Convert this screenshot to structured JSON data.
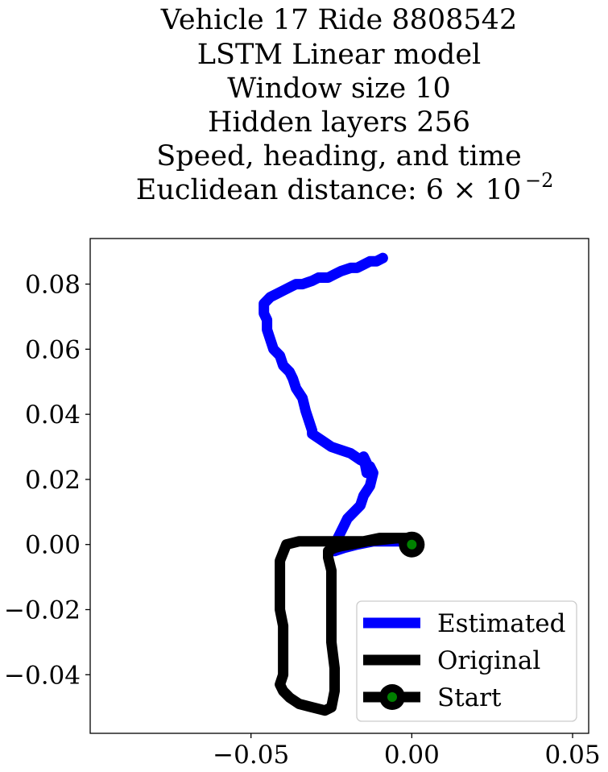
{
  "chart_data": {
    "type": "line",
    "title_lines": [
      "Vehicle 17 Ride 8808542",
      "LSTM Linear model",
      "Window size 10",
      "Hidden layers 256",
      "Speed, heading, and time",
      "Euclidean distance: 6 × 10",
      "−2"
    ],
    "xlabel": "",
    "ylabel": "",
    "xlim": [
      -0.1,
      0.055
    ],
    "ylim": [
      -0.058,
      0.094
    ],
    "x_ticks": [
      -0.05,
      0.0,
      0.05
    ],
    "x_tick_labels": [
      "−0.05",
      "0.00",
      "0.05"
    ],
    "y_ticks": [
      0.08,
      0.06,
      0.04,
      0.02,
      0.0,
      -0.02,
      -0.04
    ],
    "y_tick_labels": [
      "0.08",
      "0.06",
      "0.04",
      "0.02",
      "0.00",
      "−0.02",
      "−0.04"
    ],
    "grid": false,
    "legend_position": "lower-right",
    "series": [
      {
        "name": "Estimated",
        "color": "#0000ff",
        "x": [
          0.0,
          -0.003,
          -0.007,
          -0.012,
          -0.017,
          -0.021,
          -0.024,
          -0.023,
          -0.021,
          -0.02,
          -0.018,
          -0.016,
          -0.015,
          -0.013,
          -0.012,
          -0.013,
          -0.014,
          -0.015,
          -0.014,
          -0.016,
          -0.019,
          -0.022,
          -0.025,
          -0.028,
          -0.031,
          -0.031,
          -0.032,
          -0.033,
          -0.034,
          -0.036,
          -0.037,
          -0.038,
          -0.04,
          -0.041,
          -0.043,
          -0.044,
          -0.045,
          -0.045,
          -0.046,
          -0.046,
          -0.046,
          -0.045,
          -0.044,
          -0.042,
          -0.04,
          -0.038,
          -0.036,
          -0.034,
          -0.031,
          -0.029,
          -0.026,
          -0.024,
          -0.022,
          -0.019,
          -0.017,
          -0.015,
          -0.013,
          -0.011,
          -0.009
        ],
        "y": [
          0.0,
          0.001,
          0.001,
          0.001,
          0.0,
          -0.001,
          -0.002,
          0.002,
          0.006,
          0.008,
          0.01,
          0.012,
          0.015,
          0.018,
          0.022,
          0.024,
          0.022,
          0.027,
          0.025,
          0.026,
          0.028,
          0.029,
          0.03,
          0.032,
          0.034,
          0.035,
          0.038,
          0.041,
          0.045,
          0.048,
          0.051,
          0.053,
          0.055,
          0.058,
          0.06,
          0.063,
          0.066,
          0.069,
          0.071,
          0.073,
          0.074,
          0.075,
          0.076,
          0.077,
          0.078,
          0.079,
          0.08,
          0.08,
          0.081,
          0.082,
          0.082,
          0.083,
          0.084,
          0.085,
          0.085,
          0.086,
          0.087,
          0.087,
          0.088
        ]
      },
      {
        "name": "Original",
        "color": "#000000",
        "x": [
          0.0,
          -0.005,
          -0.01,
          -0.015,
          -0.02,
          -0.025,
          -0.03,
          -0.035,
          -0.039,
          -0.041,
          -0.041,
          -0.041,
          -0.041,
          -0.04,
          -0.04,
          -0.04,
          -0.04,
          -0.041,
          -0.04,
          -0.038,
          -0.035,
          -0.031,
          -0.027,
          -0.025,
          -0.024,
          -0.024,
          -0.025,
          -0.025,
          -0.025,
          -0.025,
          -0.026,
          -0.026,
          -0.024,
          -0.022,
          -0.019,
          -0.014,
          -0.009,
          -0.004,
          0.0
        ],
        "y": [
          0.002,
          0.002,
          0.002,
          0.001,
          0.001,
          0.001,
          0.001,
          0.001,
          0.0,
          -0.005,
          -0.01,
          -0.015,
          -0.02,
          -0.025,
          -0.03,
          -0.035,
          -0.04,
          -0.043,
          -0.045,
          -0.047,
          -0.049,
          -0.05,
          -0.051,
          -0.05,
          -0.045,
          -0.038,
          -0.03,
          -0.022,
          -0.015,
          -0.008,
          -0.004,
          -0.002,
          -0.001,
          -0.0005,
          0.0,
          0.001,
          0.0015,
          0.002,
          0.0
        ]
      },
      {
        "name": "Start",
        "color": "#000000",
        "marker_color": "#008000",
        "x": [
          0.0
        ],
        "y": [
          0.0
        ]
      }
    ]
  }
}
